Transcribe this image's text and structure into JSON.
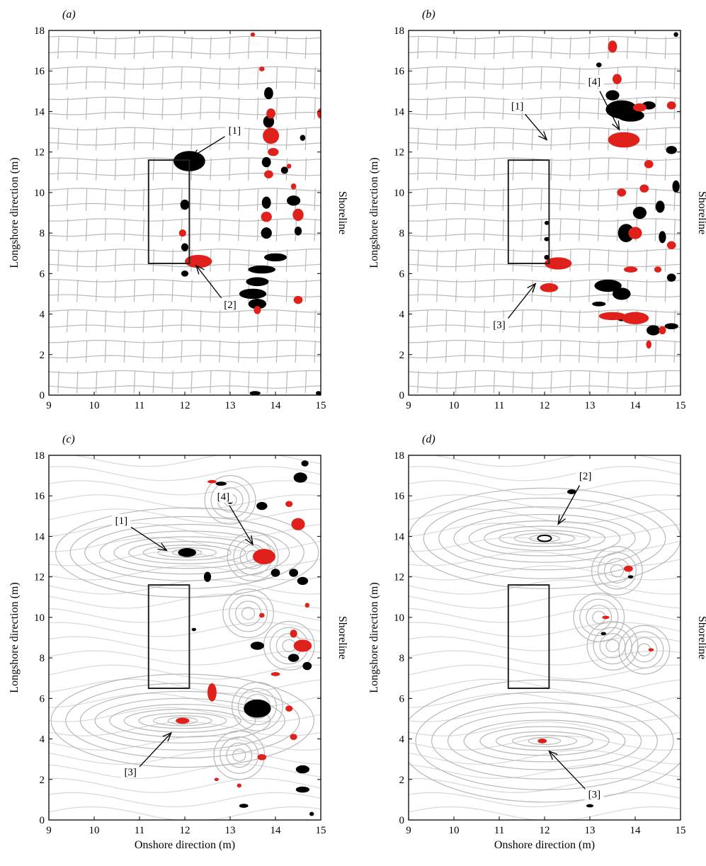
{
  "chart_data": [
    {
      "type": "contour",
      "panel_label": "(a)",
      "xlabel": "",
      "ylabel": "Longshore direction (m)",
      "side_label": "Shoreline",
      "xlim": [
        9,
        15
      ],
      "ylim": [
        0,
        18
      ],
      "xticks": [
        "9",
        "10",
        "11",
        "12",
        "13",
        "14",
        "15"
      ],
      "yticks": [
        "0",
        "2",
        "4",
        "6",
        "8",
        "10",
        "12",
        "14",
        "16",
        "18"
      ],
      "streamlines": "grid",
      "breakwater": {
        "x": [
          11.2,
          12.1
        ],
        "y": [
          6.5,
          11.6
        ]
      },
      "annotations": [
        {
          "text": "[1]",
          "text_xy": [
            13.1,
            12.8
          ],
          "arrow_to": [
            12.15,
            11.75
          ]
        },
        {
          "text": "[2]",
          "text_xy": [
            13.0,
            4.2
          ],
          "arrow_to": [
            12.25,
            6.4
          ]
        }
      ],
      "black_patches": [
        [
          12.1,
          11.55,
          0.35,
          0.5
        ],
        [
          12.15,
          11.6,
          0.25,
          0.3
        ],
        [
          12.0,
          9.4,
          0.1,
          0.25
        ],
        [
          12.0,
          7.3,
          0.08,
          0.2
        ],
        [
          12.0,
          6.0,
          0.08,
          0.15
        ],
        [
          13.6,
          4.5,
          0.2,
          0.25
        ],
        [
          13.5,
          5.0,
          0.3,
          0.25
        ],
        [
          13.6,
          5.6,
          0.25,
          0.22
        ],
        [
          13.7,
          6.2,
          0.3,
          0.2
        ],
        [
          14.0,
          6.8,
          0.25,
          0.2
        ],
        [
          13.8,
          8.0,
          0.12,
          0.28
        ],
        [
          13.8,
          9.5,
          0.1,
          0.3
        ],
        [
          13.8,
          11.5,
          0.1,
          0.25
        ],
        [
          13.85,
          13.5,
          0.12,
          0.3
        ],
        [
          13.85,
          14.9,
          0.1,
          0.3
        ],
        [
          14.4,
          9.6,
          0.15,
          0.25
        ],
        [
          14.5,
          8.1,
          0.08,
          0.22
        ],
        [
          14.2,
          11.1,
          0.08,
          0.18
        ],
        [
          14.6,
          12.7,
          0.06,
          0.15
        ],
        [
          13.55,
          0.1,
          0.12,
          0.1
        ],
        [
          14.95,
          0.1,
          0.06,
          0.1
        ]
      ],
      "red_patches": [
        [
          12.3,
          6.6,
          0.3,
          0.32
        ],
        [
          11.95,
          8.0,
          0.08,
          0.18
        ],
        [
          13.9,
          12.8,
          0.18,
          0.4
        ],
        [
          13.95,
          12.0,
          0.12,
          0.2
        ],
        [
          13.9,
          13.9,
          0.1,
          0.25
        ],
        [
          13.85,
          10.9,
          0.1,
          0.2
        ],
        [
          13.8,
          8.8,
          0.12,
          0.25
        ],
        [
          14.5,
          8.9,
          0.12,
          0.3
        ],
        [
          14.4,
          10.3,
          0.06,
          0.15
        ],
        [
          13.6,
          4.2,
          0.08,
          0.2
        ],
        [
          14.5,
          4.7,
          0.1,
          0.2
        ],
        [
          13.7,
          16.1,
          0.06,
          0.12
        ],
        [
          13.5,
          17.8,
          0.05,
          0.1
        ],
        [
          15.0,
          13.9,
          0.08,
          0.25
        ],
        [
          14.3,
          11.3,
          0.05,
          0.12
        ]
      ]
    },
    {
      "type": "contour",
      "panel_label": "(b)",
      "xlabel": "",
      "ylabel": "Longshore direction (m)",
      "side_label": "Shoreline",
      "xlim": [
        9,
        15
      ],
      "ylim": [
        0,
        18
      ],
      "xticks": [
        "9",
        "10",
        "11",
        "12",
        "13",
        "14",
        "15"
      ],
      "yticks": [
        "0",
        "2",
        "4",
        "6",
        "8",
        "10",
        "12",
        "14",
        "16",
        "18"
      ],
      "streamlines": "grid",
      "breakwater": {
        "x": [
          11.2,
          12.1
        ],
        "y": [
          6.5,
          11.6
        ]
      },
      "annotations": [
        {
          "text": "[1]",
          "text_xy": [
            11.4,
            14.0
          ],
          "arrow_to": [
            12.05,
            12.6
          ]
        },
        {
          "text": "[4]",
          "text_xy": [
            13.1,
            15.2
          ],
          "arrow_to": [
            13.65,
            13.1
          ]
        },
        {
          "text": "[3]",
          "text_xy": [
            11.0,
            3.2
          ],
          "arrow_to": [
            11.8,
            5.5
          ]
        }
      ],
      "black_patches": [
        [
          13.7,
          14.1,
          0.35,
          0.45
        ],
        [
          13.9,
          13.8,
          0.3,
          0.3
        ],
        [
          13.5,
          14.8,
          0.15,
          0.25
        ],
        [
          14.3,
          14.3,
          0.15,
          0.2
        ],
        [
          13.8,
          8.0,
          0.18,
          0.45
        ],
        [
          14.1,
          9.0,
          0.15,
          0.3
        ],
        [
          14.55,
          9.3,
          0.1,
          0.3
        ],
        [
          14.6,
          7.8,
          0.08,
          0.3
        ],
        [
          14.8,
          12.1,
          0.12,
          0.2
        ],
        [
          14.9,
          10.3,
          0.08,
          0.3
        ],
        [
          13.4,
          5.4,
          0.3,
          0.3
        ],
        [
          13.7,
          5.0,
          0.2,
          0.3
        ],
        [
          13.2,
          4.5,
          0.15,
          0.12
        ],
        [
          14.4,
          3.2,
          0.15,
          0.25
        ],
        [
          14.8,
          3.4,
          0.15,
          0.15
        ],
        [
          14.8,
          5.8,
          0.1,
          0.2
        ],
        [
          14.9,
          17.8,
          0.05,
          0.12
        ],
        [
          13.2,
          16.3,
          0.06,
          0.12
        ],
        [
          13.7,
          3.8,
          0.1,
          0.15
        ],
        [
          12.05,
          6.8,
          0.06,
          0.12
        ],
        [
          12.05,
          7.7,
          0.06,
          0.1
        ],
        [
          12.05,
          8.5,
          0.05,
          0.1
        ]
      ],
      "red_patches": [
        [
          13.75,
          12.6,
          0.35,
          0.38
        ],
        [
          13.6,
          15.6,
          0.1,
          0.25
        ],
        [
          13.5,
          17.2,
          0.1,
          0.3
        ],
        [
          14.1,
          14.2,
          0.15,
          0.2
        ],
        [
          14.8,
          14.3,
          0.1,
          0.2
        ],
        [
          12.3,
          6.5,
          0.3,
          0.3
        ],
        [
          12.1,
          5.3,
          0.2,
          0.22
        ],
        [
          14.0,
          8.0,
          0.15,
          0.3
        ],
        [
          13.7,
          10.0,
          0.1,
          0.2
        ],
        [
          14.2,
          10.2,
          0.1,
          0.2
        ],
        [
          14.3,
          11.4,
          0.1,
          0.2
        ],
        [
          13.5,
          3.9,
          0.3,
          0.2
        ],
        [
          14.0,
          3.8,
          0.3,
          0.3
        ],
        [
          14.3,
          2.5,
          0.06,
          0.2
        ],
        [
          14.6,
          3.2,
          0.08,
          0.2
        ],
        [
          13.9,
          6.2,
          0.15,
          0.15
        ],
        [
          14.8,
          7.4,
          0.1,
          0.2
        ],
        [
          14.5,
          6.2,
          0.08,
          0.15
        ]
      ]
    },
    {
      "type": "contour",
      "panel_label": "(c)",
      "xlabel": "Onshore direction (m)",
      "ylabel": "Longshore direction (m)",
      "side_label": "Shoreline",
      "xlim": [
        9,
        15
      ],
      "ylim": [
        0,
        18
      ],
      "xticks": [
        "9",
        "10",
        "11",
        "12",
        "13",
        "14",
        "15"
      ],
      "yticks": [
        "0",
        "2",
        "4",
        "6",
        "8",
        "10",
        "12",
        "14",
        "16",
        "18"
      ],
      "streamlines": "eddies",
      "breakwater": {
        "x": [
          11.2,
          12.1
        ],
        "y": [
          6.5,
          11.6
        ]
      },
      "annotations": [
        {
          "text": "[1]",
          "text_xy": [
            10.6,
            14.5
          ],
          "arrow_to": [
            11.6,
            13.3
          ]
        },
        {
          "text": "[4]",
          "text_xy": [
            12.85,
            15.7
          ],
          "arrow_to": [
            13.5,
            13.6
          ]
        },
        {
          "text": "[3]",
          "text_xy": [
            10.8,
            2.1
          ],
          "arrow_to": [
            11.7,
            4.3
          ]
        }
      ],
      "black_patches": [
        [
          12.05,
          13.2,
          0.2,
          0.22
        ],
        [
          13.6,
          5.5,
          0.3,
          0.45
        ],
        [
          14.0,
          12.2,
          0.1,
          0.2
        ],
        [
          14.4,
          12.2,
          0.1,
          0.2
        ],
        [
          14.55,
          16.9,
          0.15,
          0.25
        ],
        [
          14.65,
          17.6,
          0.08,
          0.15
        ],
        [
          14.6,
          11.8,
          0.12,
          0.2
        ],
        [
          14.4,
          8.0,
          0.12,
          0.2
        ],
        [
          14.7,
          7.6,
          0.1,
          0.2
        ],
        [
          14.6,
          2.5,
          0.15,
          0.2
        ],
        [
          14.6,
          1.5,
          0.15,
          0.15
        ],
        [
          13.3,
          0.7,
          0.1,
          0.1
        ],
        [
          12.8,
          16.6,
          0.12,
          0.1
        ],
        [
          13.7,
          15.5,
          0.12,
          0.2
        ],
        [
          12.5,
          12.0,
          0.08,
          0.25
        ],
        [
          13.6,
          8.6,
          0.15,
          0.2
        ],
        [
          13.0,
          15.7,
          0.06,
          0.1
        ],
        [
          12.2,
          9.4,
          0.05,
          0.08
        ],
        [
          14.8,
          0.3,
          0.05,
          0.1
        ]
      ],
      "red_patches": [
        [
          11.95,
          4.9,
          0.15,
          0.15
        ],
        [
          13.75,
          13.0,
          0.25,
          0.38
        ],
        [
          12.6,
          6.3,
          0.1,
          0.45
        ],
        [
          14.6,
          8.6,
          0.2,
          0.3
        ],
        [
          14.4,
          9.2,
          0.08,
          0.2
        ],
        [
          14.5,
          14.6,
          0.15,
          0.3
        ],
        [
          14.3,
          15.6,
          0.08,
          0.15
        ],
        [
          12.6,
          16.7,
          0.1,
          0.08
        ],
        [
          13.2,
          1.7,
          0.05,
          0.1
        ],
        [
          12.7,
          2.0,
          0.05,
          0.08
        ],
        [
          13.7,
          3.1,
          0.1,
          0.15
        ],
        [
          13.7,
          10.1,
          0.06,
          0.12
        ],
        [
          14.4,
          4.1,
          0.08,
          0.15
        ],
        [
          14.7,
          10.6,
          0.05,
          0.12
        ],
        [
          14.3,
          5.5,
          0.08,
          0.15
        ],
        [
          14.0,
          7.2,
          0.1,
          0.1
        ]
      ]
    },
    {
      "type": "contour",
      "panel_label": "(d)",
      "xlabel": "Onshore direction (m)",
      "ylabel": "Longshore direction (m)",
      "side_label": "Shoreline",
      "xlim": [
        9,
        15
      ],
      "ylim": [
        0,
        18
      ],
      "xticks": [
        "9",
        "10",
        "11",
        "12",
        "13",
        "14",
        "15"
      ],
      "yticks": [
        "0",
        "2",
        "4",
        "6",
        "8",
        "10",
        "12",
        "14",
        "16",
        "18"
      ],
      "streamlines": "eddies-large",
      "breakwater": {
        "x": [
          11.2,
          12.1
        ],
        "y": [
          6.5,
          11.6
        ]
      },
      "annotations": [
        {
          "text": "[2]",
          "text_xy": [
            12.9,
            16.7
          ],
          "arrow_to": [
            12.3,
            14.6
          ]
        },
        {
          "text": "[3]",
          "text_xy": [
            13.1,
            1.0
          ],
          "arrow_to": [
            12.1,
            3.4
          ]
        }
      ],
      "black_patches": [
        [
          12.6,
          16.2,
          0.1,
          0.12
        ],
        [
          13.9,
          12.0,
          0.06,
          0.08
        ],
        [
          13.3,
          9.2,
          0.06,
          0.08
        ],
        [
          13.0,
          0.7,
          0.08,
          0.08
        ]
      ],
      "red_patches": [
        [
          11.95,
          3.9,
          0.1,
          0.12
        ],
        [
          13.85,
          12.4,
          0.1,
          0.15
        ],
        [
          13.35,
          10.0,
          0.08,
          0.08
        ],
        [
          14.35,
          8.4,
          0.06,
          0.08
        ]
      ],
      "ring_patches": [
        [
          12.0,
          13.9,
          0.15,
          0.15
        ]
      ]
    }
  ]
}
